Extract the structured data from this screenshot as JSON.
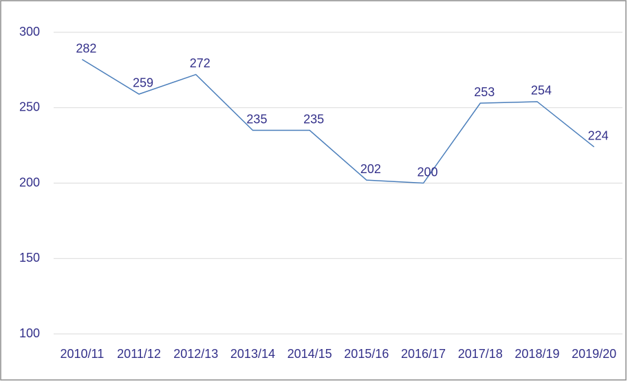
{
  "chart_data": {
    "type": "line",
    "categories": [
      "2010/11",
      "2011/12",
      "2012/13",
      "2013/14",
      "2014/15",
      "2015/16",
      "2016/17",
      "2017/18",
      "2018/19",
      "2019/20"
    ],
    "values": [
      282,
      259,
      272,
      235,
      235,
      202,
      200,
      253,
      254,
      224
    ],
    "color": "#4a7ebb",
    "ylim": [
      100,
      300
    ],
    "yticks": [
      100,
      150,
      200,
      250,
      300
    ],
    "grid": true
  }
}
